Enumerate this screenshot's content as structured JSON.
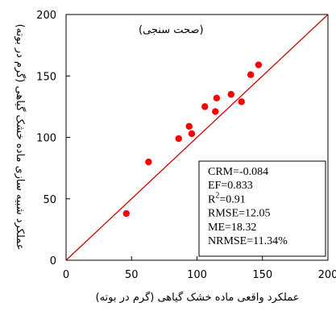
{
  "chart_data": {
    "type": "scatter",
    "xlabel": "عملکرد واقعی ماده خشک گیاهی (گرم در بوته)",
    "ylabel": "عملکرد شبیه سازی ماده خشک گیاهی (گرم در بوته)",
    "panel_label": "(صحت سنجی)",
    "xlim": [
      0,
      200
    ],
    "ylim": [
      0,
      200
    ],
    "x_ticks": [
      0,
      50,
      100,
      150,
      200
    ],
    "y_ticks": [
      0,
      50,
      100,
      150,
      200
    ],
    "x_tick_labels": [
      "0",
      "50",
      "100",
      "150",
      "200"
    ],
    "y_tick_labels": [
      "0",
      "50",
      "100",
      "150",
      "200"
    ],
    "grid": false,
    "marker_color": "#ff0000",
    "line_color": "#cc0000",
    "reference_line": {
      "type": "1:1",
      "from": [
        0,
        0
      ],
      "to": [
        200,
        200
      ]
    },
    "points": [
      {
        "x": 46,
        "y": 38
      },
      {
        "x": 63,
        "y": 80
      },
      {
        "x": 86,
        "y": 99
      },
      {
        "x": 94,
        "y": 109
      },
      {
        "x": 96,
        "y": 103
      },
      {
        "x": 106,
        "y": 125
      },
      {
        "x": 114,
        "y": 121
      },
      {
        "x": 115,
        "y": 132
      },
      {
        "x": 126,
        "y": 135
      },
      {
        "x": 134,
        "y": 129
      },
      {
        "x": 141,
        "y": 151
      },
      {
        "x": 147,
        "y": 159
      }
    ],
    "stats": [
      {
        "id": "crm",
        "text": "CRM=-0.084"
      },
      {
        "id": "ef",
        "text": "EF=0.833"
      },
      {
        "id": "r2",
        "base": "R",
        "sup": "2",
        "rest": "=0.91"
      },
      {
        "id": "rmse",
        "text": "RMSE=12.05"
      },
      {
        "id": "me",
        "text": "ME=18.32"
      },
      {
        "id": "nrmse",
        "text": "NRMSE=11.34%"
      }
    ]
  }
}
